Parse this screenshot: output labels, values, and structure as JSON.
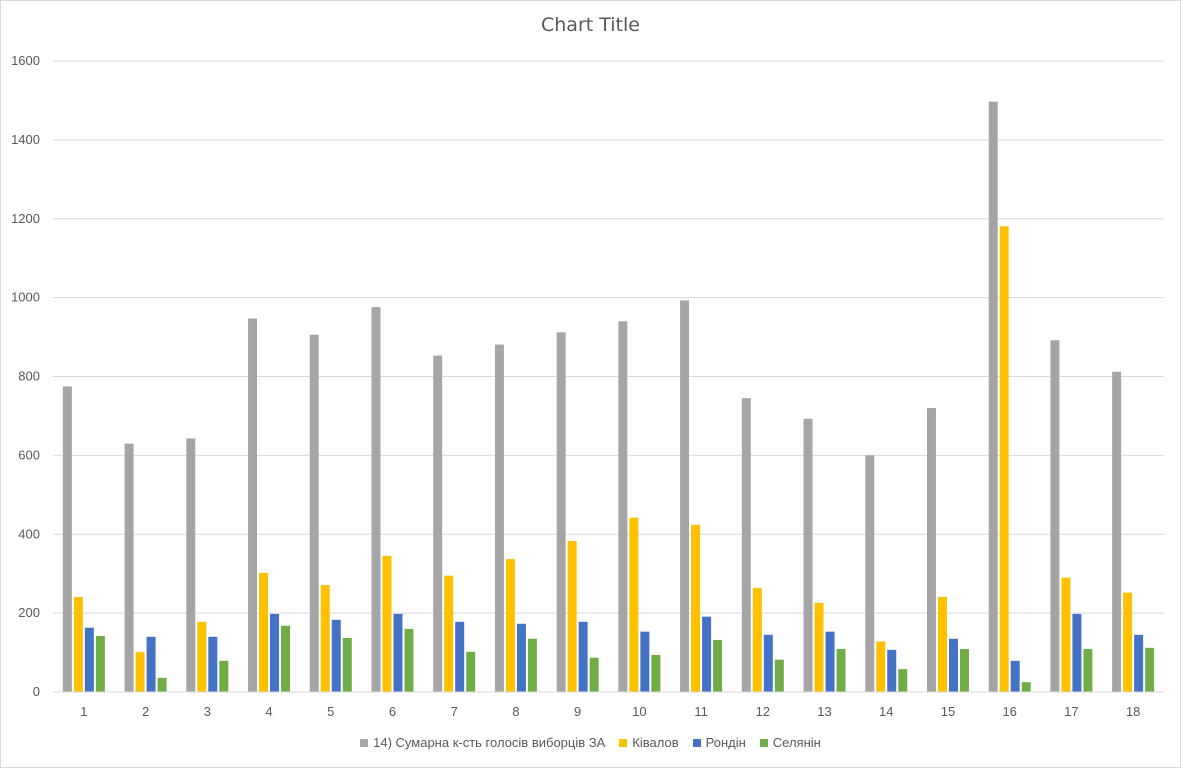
{
  "chart_data": {
    "type": "bar",
    "title": "Chart Title",
    "xlabel": "",
    "ylabel": "",
    "ylim": [
      0,
      1600
    ],
    "yticks": [
      0,
      200,
      400,
      600,
      800,
      1000,
      1200,
      1400,
      1600
    ],
    "grid": "horizontal",
    "legend_position": "bottom",
    "categories": [
      "1",
      "2",
      "3",
      "4",
      "5",
      "6",
      "7",
      "8",
      "9",
      "10",
      "11",
      "12",
      "13",
      "14",
      "15",
      "16",
      "17",
      "18"
    ],
    "series": [
      {
        "name": "14) Сумарна к-сть голосів виборців ЗА",
        "color": "#a5a5a5",
        "values": [
          775,
          630,
          643,
          947,
          906,
          976,
          853,
          881,
          912,
          940,
          993,
          745,
          693,
          600,
          720,
          1497,
          892,
          812
        ]
      },
      {
        "name": "Ківалов",
        "color": "#ffc000",
        "values": [
          241,
          101,
          178,
          302,
          271,
          345,
          295,
          337,
          383,
          442,
          424,
          264,
          226,
          128,
          241,
          1181,
          290,
          252
        ]
      },
      {
        "name": "Рондін",
        "color": "#4472c4",
        "values": [
          163,
          140,
          140,
          198,
          183,
          198,
          178,
          173,
          178,
          153,
          191,
          145,
          153,
          107,
          135,
          79,
          198,
          145
        ]
      },
      {
        "name": "Селянін",
        "color": "#70ad47",
        "values": [
          142,
          36,
          79,
          168,
          137,
          160,
          102,
          135,
          87,
          94,
          132,
          82,
          109,
          58,
          109,
          25,
          109,
          112
        ]
      }
    ]
  }
}
